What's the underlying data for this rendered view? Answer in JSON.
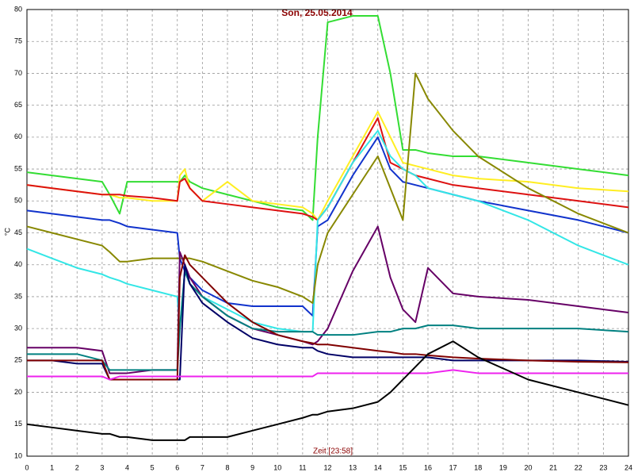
{
  "chart_data": {
    "type": "line",
    "title": "Son, 25.05.2014",
    "x_label": "Zeit [23:58]",
    "y_label": "°C",
    "x": [
      0,
      1,
      2,
      3,
      3.3,
      3.7,
      4,
      5,
      6,
      6.1,
      6.3,
      6.5,
      7,
      8,
      9,
      10,
      11,
      11.4,
      11.6,
      12,
      13,
      14,
      14.5,
      15,
      15.5,
      16,
      17,
      18,
      20,
      22,
      24
    ],
    "series": [
      {
        "color": "#33dd33",
        "values": [
          54.5,
          54,
          53.5,
          53,
          51,
          48,
          53,
          53,
          53,
          53,
          54,
          53,
          52,
          51,
          50,
          49,
          48.5,
          47,
          60,
          78,
          79,
          79,
          70,
          58,
          58,
          57.5,
          57,
          57,
          56,
          55,
          54
        ]
      },
      {
        "color": "#ffee22",
        "values": [
          52.5,
          52,
          51.5,
          51,
          51,
          50.5,
          50.5,
          50,
          50,
          54,
          55,
          52,
          50,
          53,
          50,
          49.5,
          49,
          48,
          47,
          50,
          57,
          64,
          60,
          56,
          55.5,
          55,
          54,
          53.5,
          53,
          52,
          51.5
        ]
      },
      {
        "color": "#dd1111",
        "values": [
          52.5,
          52,
          51.5,
          51,
          51,
          51,
          50.8,
          50.5,
          50,
          53,
          53.5,
          52,
          50,
          49.5,
          49,
          48.5,
          48,
          47.5,
          47,
          49,
          56,
          63,
          56,
          55,
          54,
          53.5,
          52.5,
          52,
          51,
          50,
          49
        ]
      },
      {
        "color": "#1133cc",
        "values": [
          48.5,
          48,
          47.5,
          47,
          47,
          46.5,
          46,
          45.5,
          45,
          41,
          39,
          38,
          36,
          34,
          33.5,
          33.5,
          33.5,
          32,
          46,
          47,
          54,
          60,
          55,
          53,
          52.5,
          52,
          51,
          50,
          48.5,
          47,
          45
        ]
      },
      {
        "color": "#33e6e6",
        "values": [
          42.5,
          41,
          39.5,
          38.5,
          38,
          37.5,
          37,
          36,
          35,
          30,
          39,
          37,
          35,
          33,
          31,
          30,
          29.5,
          29.5,
          47,
          49,
          56,
          61,
          57,
          55,
          54,
          52,
          51,
          50,
          47,
          43,
          40
        ]
      },
      {
        "color": "#888800",
        "values": [
          46,
          45,
          44,
          43,
          42,
          40.5,
          40.5,
          41,
          41,
          41,
          41,
          41,
          40.5,
          39,
          37.5,
          36.5,
          35,
          34,
          40,
          45,
          51,
          57,
          52,
          47,
          70,
          66,
          61,
          57,
          52,
          48,
          45
        ]
      },
      {
        "color": "#660066",
        "values": [
          27,
          27,
          27,
          26.5,
          23,
          23,
          23,
          23.5,
          23.5,
          42,
          40,
          38,
          35,
          32,
          30,
          29,
          28,
          27.5,
          28,
          30,
          39,
          46,
          38,
          33,
          31,
          39.5,
          35.5,
          35,
          34.5,
          33.5,
          32.5
        ]
      },
      {
        "color": "#008080",
        "values": [
          26,
          26,
          26,
          25,
          23.5,
          23.5,
          23.5,
          23.5,
          23.5,
          30,
          39,
          37,
          35,
          32,
          30,
          29.5,
          29.5,
          29.5,
          29,
          29,
          29,
          29.5,
          29.5,
          30,
          30,
          30.5,
          30.5,
          30,
          30,
          30,
          29.5
        ]
      },
      {
        "color": "#000066",
        "values": [
          25,
          25,
          24.5,
          24.5,
          22,
          22,
          22,
          22,
          22,
          22,
          40,
          37,
          34,
          31,
          28.5,
          27.5,
          27,
          27,
          26.5,
          26,
          25.5,
          25.5,
          25.5,
          25.5,
          25.5,
          25.5,
          25,
          25,
          25,
          25,
          24.8
        ]
      },
      {
        "color": "#800000",
        "values": [
          25,
          25,
          25,
          25,
          22,
          22,
          22,
          22,
          22,
          38,
          41.5,
          40,
          38,
          34,
          31,
          29,
          28,
          27.7,
          27.5,
          27.5,
          27,
          26.5,
          26.3,
          26,
          26,
          25.8,
          25.5,
          25.3,
          25,
          24.8,
          24.7
        ]
      },
      {
        "color": "#ee22ee",
        "values": [
          22.5,
          22.5,
          22.5,
          22.5,
          22,
          22.5,
          22.5,
          22.5,
          22.5,
          22.5,
          22.5,
          22.5,
          22.5,
          22.5,
          22.5,
          22.5,
          22.5,
          22.5,
          23,
          23,
          23,
          23,
          23,
          23,
          23,
          23,
          23.5,
          23,
          23,
          23,
          23
        ]
      },
      {
        "color": "#000000",
        "values": [
          15,
          14.5,
          14,
          13.5,
          13.5,
          13,
          13,
          12.5,
          12.5,
          12.5,
          12.5,
          13,
          13,
          13,
          14,
          15,
          16,
          16.5,
          16.5,
          17,
          17.5,
          18.5,
          20,
          22,
          24,
          26,
          28,
          25.5,
          22,
          20,
          18
        ]
      }
    ],
    "xlim": [
      0,
      24
    ],
    "ylim": [
      10,
      80
    ],
    "xticks": [
      0,
      1,
      2,
      3,
      4,
      5,
      6,
      7,
      8,
      9,
      10,
      11,
      12,
      13,
      14,
      15,
      16,
      17,
      18,
      19,
      20,
      21,
      22,
      23,
      24
    ],
    "yticks": [
      10,
      15,
      20,
      25,
      30,
      35,
      40,
      45,
      50,
      55,
      60,
      65,
      70,
      75,
      80
    ],
    "grid": true
  }
}
